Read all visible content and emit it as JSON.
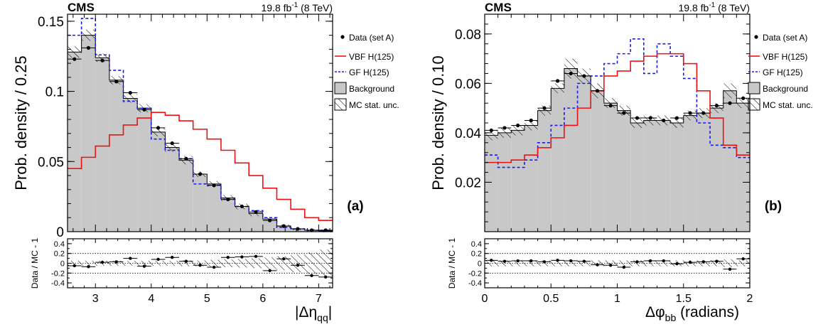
{
  "chart_data": [
    {
      "type": "histogram",
      "experiment": "CMS",
      "lumi_prefix": "19.8 fb",
      "lumi_sup": "-1",
      "lumi_suffix": " (8 TeV)",
      "panel_label": "(a)",
      "ylabel": "Prob. density / 0.25",
      "xlabel_main": "|Δη",
      "xlabel_sub": "qq",
      "xlabel_end": "|",
      "ratio_ylabel": "Data / MC - 1",
      "xlim": [
        2.5,
        7.25
      ],
      "ylim": [
        0,
        0.155
      ],
      "ratio_ylim": [
        -0.5,
        0.5
      ],
      "bin_edges": [
        2.5,
        2.75,
        3.0,
        3.25,
        3.5,
        3.75,
        4.0,
        4.25,
        4.5,
        4.75,
        5.0,
        5.25,
        5.5,
        5.75,
        6.0,
        6.25,
        6.5,
        6.75,
        7.0,
        7.25
      ],
      "xticks": [
        "3",
        "4",
        "5",
        "6",
        "7"
      ],
      "xtick_values": [
        3,
        4,
        5,
        6,
        7
      ],
      "yticks": [
        "0",
        "0.05",
        "0.1",
        "0.15"
      ],
      "ytick_values": [
        0,
        0.05,
        0.1,
        0.15
      ],
      "ratio_yticks": [
        "-0.4",
        "-0.2",
        "0",
        "0.2",
        "0.4"
      ],
      "ratio_ytick_values": [
        -0.4,
        -0.2,
        0,
        0.2,
        0.4
      ],
      "series": [
        {
          "name": "Data (set A)",
          "style": "points",
          "color": "#000000",
          "values": [
            0.123,
            0.131,
            0.122,
            0.107,
            0.099,
            0.087,
            0.074,
            0.063,
            0.052,
            0.041,
            0.033,
            0.023,
            0.018,
            0.014,
            0.008,
            0.004,
            0.002,
            0.001,
            0.001
          ]
        },
        {
          "name": "VBF H(125)",
          "style": "line",
          "color": "#ee1111",
          "values": [
            0.045,
            0.053,
            0.061,
            0.069,
            0.076,
            0.081,
            0.085,
            0.083,
            0.079,
            0.073,
            0.066,
            0.058,
            0.049,
            0.04,
            0.031,
            0.023,
            0.016,
            0.01,
            0.008
          ]
        },
        {
          "name": "GF H(125)",
          "style": "dashed",
          "color": "#1a1aee",
          "values": [
            0.14,
            0.152,
            0.126,
            0.115,
            0.093,
            0.088,
            0.066,
            0.058,
            0.052,
            0.034,
            0.033,
            0.023,
            0.018,
            0.015,
            0.01,
            0.003,
            0.002,
            0.001,
            0.001
          ]
        },
        {
          "name": "Background",
          "style": "fill",
          "color": "#c8c8c8",
          "values": [
            0.128,
            0.14,
            0.124,
            0.108,
            0.095,
            0.088,
            0.071,
            0.06,
            0.051,
            0.041,
            0.034,
            0.024,
            0.018,
            0.013,
            0.009,
            0.004,
            0.002,
            0.001,
            0.0005
          ]
        },
        {
          "name": "MC stat. unc.",
          "style": "hatch",
          "color": "#000000",
          "values": [
            0.004,
            0.004,
            0.003,
            0.003,
            0.003,
            0.003,
            0.003,
            0.003,
            0.003,
            0.002,
            0.002,
            0.002,
            0.002,
            0.002,
            0.001,
            0.001,
            0.001,
            0.001,
            0.001
          ]
        }
      ],
      "ratio_points": [
        -0.05,
        -0.07,
        0.02,
        0.03,
        0.1,
        -0.06,
        0.08,
        0.12,
        0.04,
        -0.04,
        -0.08,
        0.12,
        0.13,
        0.14,
        -0.15,
        0.09,
        -0.04,
        -0.25,
        -0.28
      ],
      "ratio_unc": [
        0.05,
        0.05,
        0.05,
        0.05,
        0.05,
        0.05,
        0.05,
        0.05,
        0.06,
        0.06,
        0.07,
        0.08,
        0.09,
        0.1,
        0.12,
        0.14,
        0.18,
        0.22,
        0.28
      ],
      "legend": [
        "Data (set A)",
        "VBF H(125)",
        "GF H(125)",
        "Background",
        "MC stat. unc."
      ],
      "legend_position": "top-right"
    },
    {
      "type": "histogram",
      "experiment": "CMS",
      "lumi_prefix": "19.8 fb",
      "lumi_sup": "-1",
      "lumi_suffix": " (8 TeV)",
      "panel_label": "(b)",
      "ylabel": "Prob. density / 0.10",
      "xlabel_main": "Δφ",
      "xlabel_sub": "bb",
      "xlabel_end": " (radians)",
      "ratio_ylabel": "Data / MC - 1",
      "xlim": [
        0,
        2.0
      ],
      "ylim": [
        0,
        0.088
      ],
      "ratio_ylim": [
        -0.5,
        0.5
      ],
      "bin_edges": [
        0,
        0.1,
        0.2,
        0.3,
        0.4,
        0.5,
        0.6,
        0.7,
        0.8,
        0.9,
        1.0,
        1.1,
        1.2,
        1.3,
        1.4,
        1.5,
        1.6,
        1.7,
        1.8,
        1.9,
        2.0
      ],
      "xticks": [
        "0",
        "0.5",
        "1",
        "1.5",
        "2"
      ],
      "xtick_values": [
        0,
        0.5,
        1,
        1.5,
        2
      ],
      "yticks": [
        "0.02",
        "0.04",
        "0.06",
        "0.08"
      ],
      "ytick_values": [
        0.02,
        0.04,
        0.06,
        0.08
      ],
      "ratio_yticks": [
        "-0.4",
        "-0.2",
        "0",
        "0.2",
        "0.4"
      ],
      "ratio_ytick_values": [
        -0.4,
        -0.2,
        0,
        0.2,
        0.4
      ],
      "series": [
        {
          "name": "Data (set A)",
          "style": "points",
          "color": "#000000",
          "values": [
            0.041,
            0.042,
            0.043,
            0.045,
            0.05,
            0.061,
            0.064,
            0.063,
            0.057,
            0.051,
            0.048,
            0.046,
            0.046,
            0.045,
            0.046,
            0.048,
            0.048,
            0.051,
            0.052,
            0.054
          ]
        },
        {
          "name": "VBF H(125)",
          "style": "line",
          "color": "#ee1111",
          "values": [
            0.028,
            0.028,
            0.029,
            0.031,
            0.034,
            0.038,
            0.043,
            0.05,
            0.057,
            0.063,
            0.065,
            0.069,
            0.071,
            0.072,
            0.072,
            0.068,
            0.057,
            0.046,
            0.035,
            0.031
          ]
        },
        {
          "name": "GF H(125)",
          "style": "dashed",
          "color": "#1a1aee",
          "values": [
            0.031,
            0.026,
            0.026,
            0.029,
            0.036,
            0.043,
            0.05,
            0.06,
            0.063,
            0.068,
            0.072,
            0.078,
            0.064,
            0.076,
            0.071,
            0.062,
            0.044,
            0.035,
            0.034,
            0.03
          ]
        },
        {
          "name": "Background",
          "style": "fill",
          "color": "#c8c8c8",
          "values": [
            0.039,
            0.04,
            0.041,
            0.043,
            0.049,
            0.058,
            0.066,
            0.063,
            0.057,
            0.052,
            0.049,
            0.044,
            0.045,
            0.045,
            0.044,
            0.047,
            0.048,
            0.05,
            0.057,
            0.052
          ]
        },
        {
          "name": "MC stat. unc.",
          "style": "hatch",
          "color": "#000000",
          "values": [
            0.002,
            0.002,
            0.002,
            0.002,
            0.002,
            0.002,
            0.004,
            0.003,
            0.003,
            0.002,
            0.002,
            0.002,
            0.002,
            0.002,
            0.002,
            0.002,
            0.002,
            0.002,
            0.003,
            0.002
          ]
        }
      ],
      "ratio_points": [
        0.06,
        0.04,
        0.05,
        0.05,
        0.03,
        0.06,
        0.05,
        0.04,
        -0.03,
        -0.04,
        -0.08,
        0.03,
        0.05,
        0.05,
        -0.01,
        0.02,
        0.03,
        0.04,
        -0.12,
        0.09
      ],
      "ratio_unc": [
        0.06,
        0.06,
        0.06,
        0.06,
        0.06,
        0.06,
        0.06,
        0.06,
        0.06,
        0.06,
        0.06,
        0.06,
        0.06,
        0.06,
        0.06,
        0.06,
        0.06,
        0.06,
        0.08,
        0.06
      ],
      "legend": [
        "Data (set A)",
        "VBF H(125)",
        "GF H(125)",
        "Background",
        "MC stat. unc."
      ],
      "legend_position": "top-right"
    }
  ]
}
